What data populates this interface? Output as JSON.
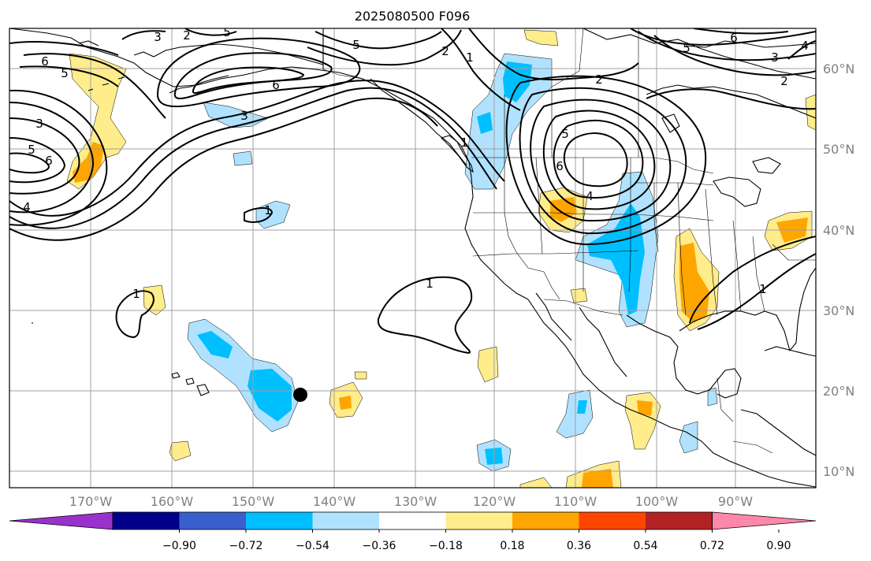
{
  "title": "2025080500 F096",
  "lon_labels": [
    "170°W",
    "160°W",
    "150°W",
    "140°W",
    "130°W",
    "120°W",
    "110°W",
    "100°W",
    "90°W"
  ],
  "lat_labels": [
    "60°N",
    "50°N",
    "40°N",
    "30°N",
    "20°N",
    "10°N"
  ],
  "colorbar": {
    "ticks": [
      "−0.90",
      "−0.72",
      "−0.54",
      "−0.36",
      "−0.18",
      "0.18",
      "0.36",
      "0.54",
      "0.72",
      "0.90"
    ],
    "colors": [
      "#9932cc",
      "#00008b",
      "#3a5fcd",
      "#00bfff",
      "#b0e2ff",
      "#ffffff",
      "#ffec8b",
      "#ffa500",
      "#ff4500",
      "#b22222",
      "#ff88aa"
    ]
  },
  "contour_labels": {
    "c1": "1",
    "c2": "2",
    "c3": "3",
    "c4": "4",
    "c5": "5",
    "c6": "6"
  },
  "marker": {
    "lon": -144,
    "lat": 19.5
  }
}
